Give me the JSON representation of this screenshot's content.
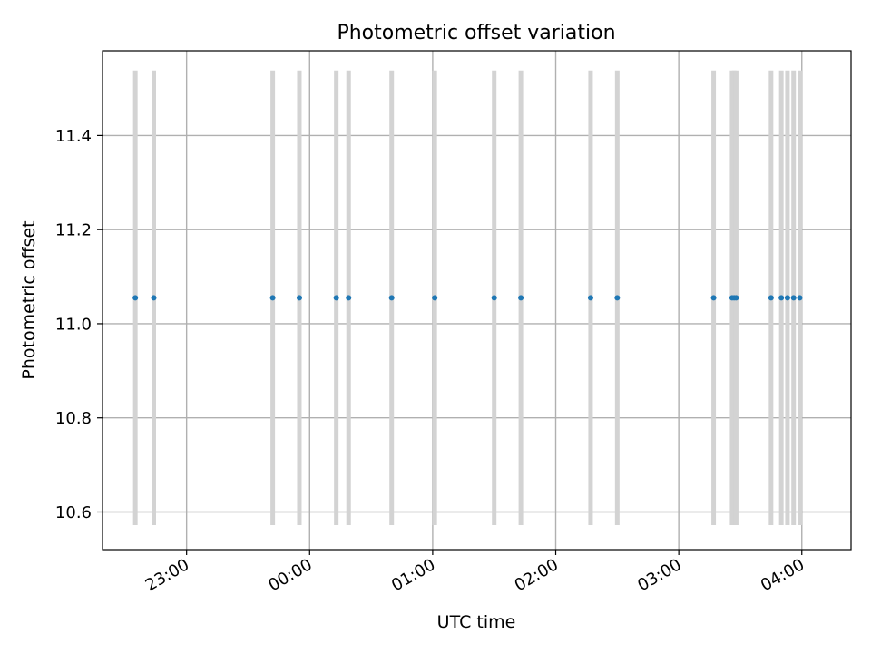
{
  "chart_data": {
    "type": "scatter",
    "title": "Photometric offset variation",
    "xlabel": "UTC time",
    "ylabel": "Photometric offset",
    "xlim": [
      "22:19",
      "04:24"
    ],
    "ylim": [
      10.52,
      11.58
    ],
    "x_tick_labels": [
      "23:00",
      "00:00",
      "01:00",
      "02:00",
      "03:00",
      "04:00"
    ],
    "x_tick_values": [
      "23:00",
      "00:00",
      "01:00",
      "02:00",
      "03:00",
      "04:00"
    ],
    "y_ticks": [
      10.6,
      10.8,
      11.0,
      11.2,
      11.4
    ],
    "y_tick_labels": [
      "10.6",
      "10.8",
      "11.0",
      "11.2",
      "11.4"
    ],
    "grid": true,
    "marker_color": "#1f77b4",
    "errorbar_color": "#d3d3d3",
    "series": [
      {
        "x": [
          "22:35",
          "22:44",
          "23:42",
          "23:55",
          "00:13",
          "00:19",
          "00:40",
          "01:01",
          "01:30",
          "01:43",
          "02:17",
          "02:30",
          "03:17",
          "03:26",
          "03:27",
          "03:28",
          "03:45",
          "03:50",
          "03:53",
          "03:56",
          "03:59"
        ],
        "y": [
          11.055,
          11.055,
          11.055,
          11.055,
          11.055,
          11.055,
          11.055,
          11.055,
          11.055,
          11.055,
          11.055,
          11.055,
          11.055,
          11.055,
          11.055,
          11.055,
          11.055,
          11.055,
          11.055,
          11.055,
          11.055
        ],
        "yerr": [
          0.483,
          0.483,
          0.483,
          0.483,
          0.483,
          0.483,
          0.483,
          0.483,
          0.483,
          0.483,
          0.483,
          0.483,
          0.483,
          0.483,
          0.483,
          0.483,
          0.483,
          0.483,
          0.483,
          0.483,
          0.483
        ]
      }
    ]
  }
}
